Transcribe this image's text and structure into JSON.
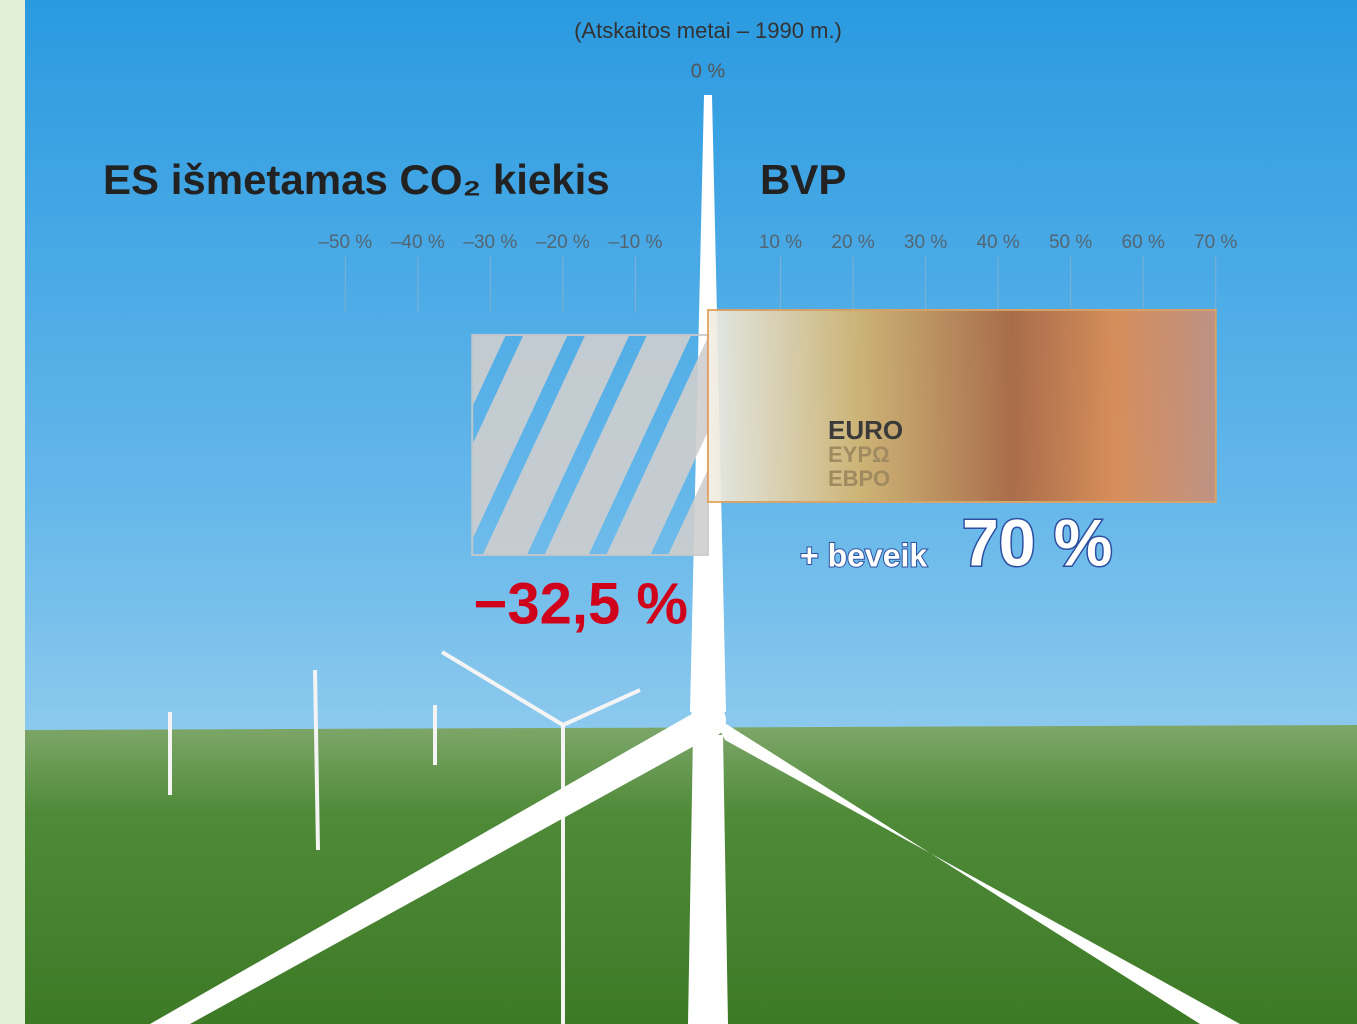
{
  "chart_data": {
    "type": "bar",
    "orientation": "horizontal",
    "subtitle": "(Atskaitos metai – 1990 m.)",
    "categories": [
      "ES išmetamas CO₂ kiekis",
      "BVP"
    ],
    "values": [
      -32.5,
      70
    ],
    "value_labels": [
      "−32,5 %",
      "70 %"
    ],
    "value_prefixes": [
      null,
      "+ beveik"
    ],
    "colors": [
      "#c9c9c9",
      "#e3a25c"
    ],
    "label_colors": [
      "#d0021b",
      "#ffffff"
    ],
    "xlim": [
      -55,
      75
    ],
    "xticks": [
      {
        "value": -50,
        "label": "–50 %"
      },
      {
        "value": -40,
        "label": "–40 %"
      },
      {
        "value": -30,
        "label": "–30 %"
      },
      {
        "value": -20,
        "label": "–20 %"
      },
      {
        "value": -10,
        "label": "–10 %"
      },
      {
        "value": 10,
        "label": "10 %"
      },
      {
        "value": 20,
        "label": "20 %"
      },
      {
        "value": 30,
        "label": "30 %"
      },
      {
        "value": 40,
        "label": "40 %"
      },
      {
        "value": 50,
        "label": "50 %"
      },
      {
        "value": 60,
        "label": "60 %"
      },
      {
        "value": 70,
        "label": "70 %"
      }
    ],
    "zero_tick": {
      "value": 0,
      "label": "0 %"
    },
    "grid": true
  },
  "banknote": [
    "EURO",
    "ΕΥΡΩ",
    "ЕВРО"
  ]
}
